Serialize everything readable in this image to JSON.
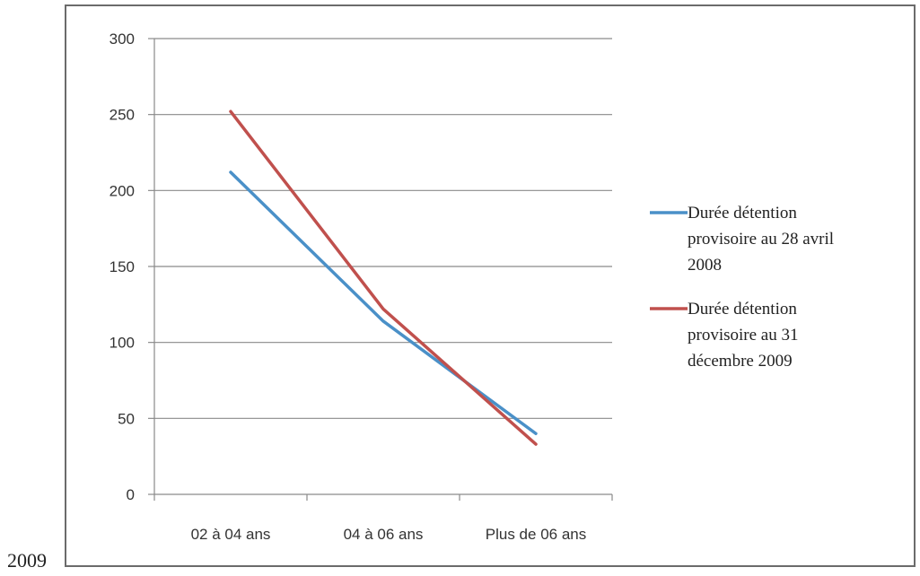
{
  "page_label": "2009",
  "chart_data": {
    "type": "line",
    "categories": [
      "02 à 04 ans",
      "04 à 06 ans",
      "Plus de 06 ans"
    ],
    "ylim": [
      0,
      300
    ],
    "yticks": [
      0,
      50,
      100,
      150,
      200,
      250,
      300
    ],
    "grid": true,
    "legend_position": "right",
    "series": [
      {
        "name": "Durée détention provisoire au 28 avril 2008",
        "legend_lines": [
          "Durée détention",
          "provisoire au 28 avril",
          "2008"
        ],
        "color": "#4a90c8",
        "values": [
          212,
          114,
          40
        ]
      },
      {
        "name": "Durée détention provisoire au 31 décembre 2009",
        "legend_lines": [
          "Durée détention",
          "provisoire au 31",
          "décembre 2009"
        ],
        "color": "#c0504d",
        "values": [
          252,
          122,
          33
        ]
      }
    ]
  }
}
